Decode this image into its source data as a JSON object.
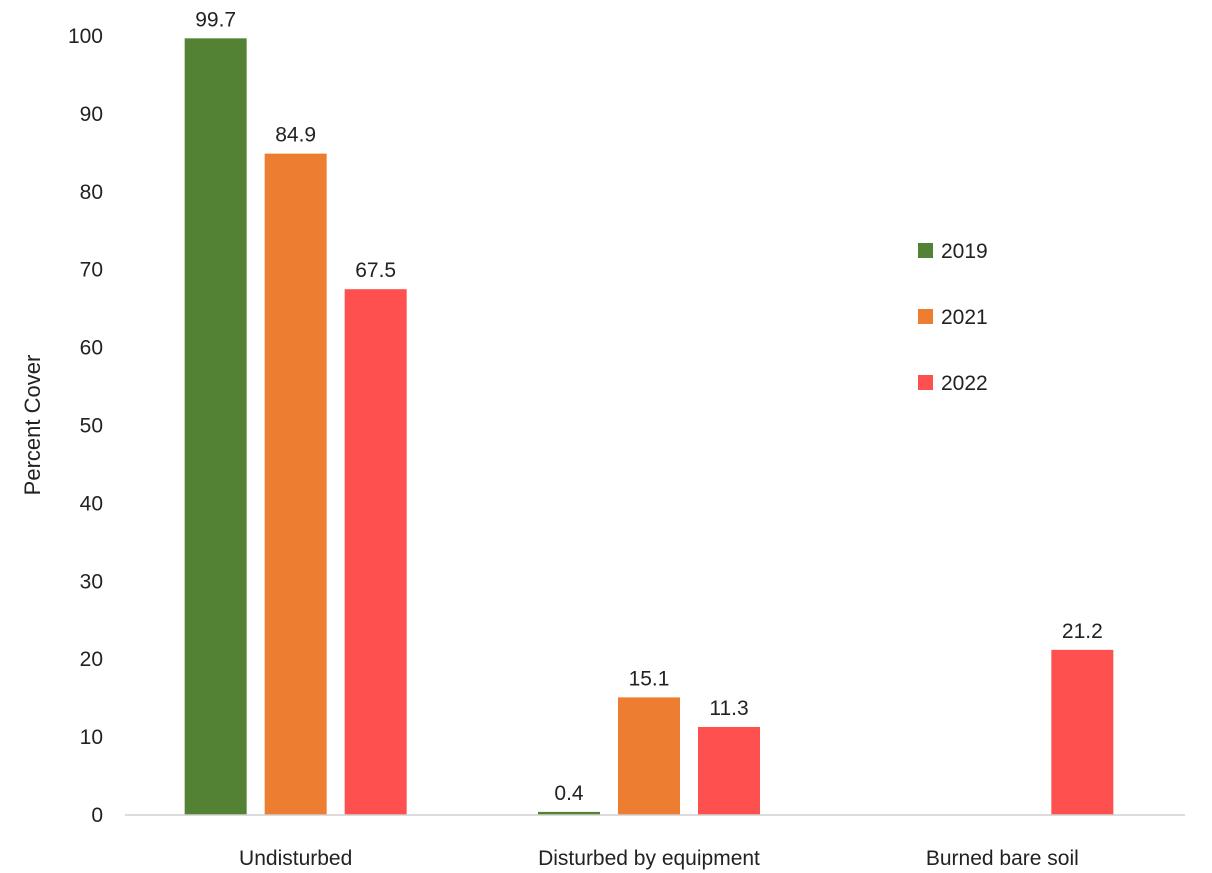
{
  "chart_data": {
    "type": "bar",
    "title": "",
    "xlabel": "",
    "ylabel": "Percent Cover",
    "ylim": [
      0,
      100
    ],
    "yticks": [
      0,
      10,
      20,
      30,
      40,
      50,
      60,
      70,
      80,
      90,
      100
    ],
    "categories": [
      "Undisturbed",
      "Disturbed by equipment",
      "Burned bare soil"
    ],
    "series": [
      {
        "name": "2019",
        "color": "#548235",
        "values": [
          99.7,
          0.4,
          null
        ],
        "labels": [
          "99.7",
          "0.4",
          null
        ]
      },
      {
        "name": "2021",
        "color": "#ED7D31",
        "values": [
          84.9,
          15.1,
          null
        ],
        "labels": [
          "84.9",
          "15.1",
          null
        ]
      },
      {
        "name": "2022",
        "color": "#FF5050",
        "values": [
          67.5,
          11.3,
          21.2
        ],
        "labels": [
          "67.5",
          "11.3",
          "21.2"
        ]
      }
    ],
    "grid": false,
    "legend_position": "right"
  }
}
